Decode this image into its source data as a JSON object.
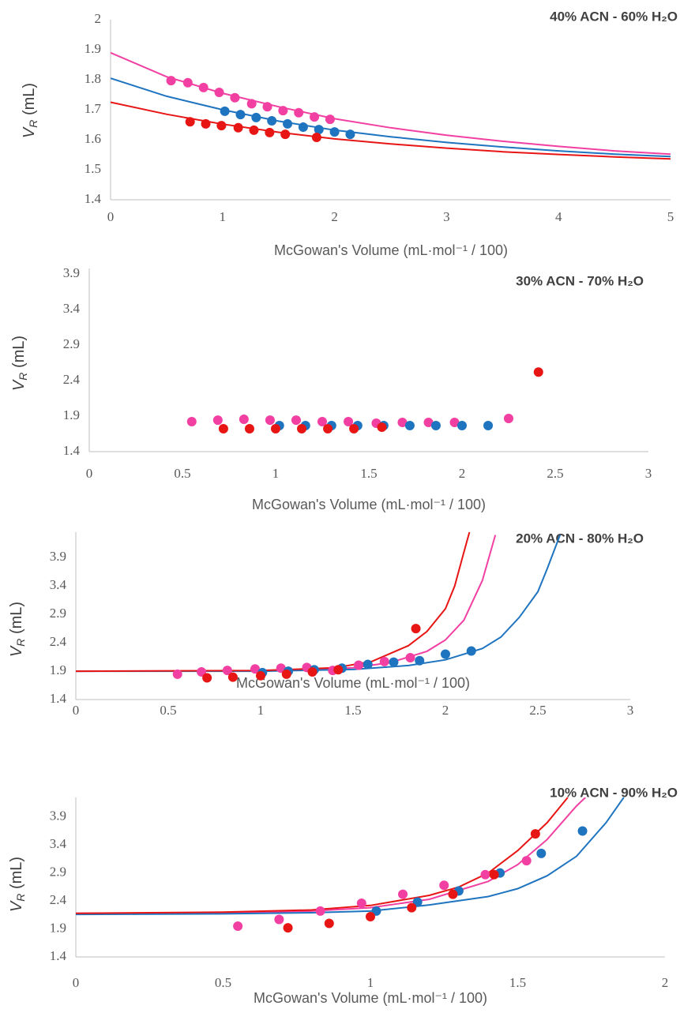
{
  "chart_data": [
    {
      "type": "scatter",
      "title": "40% ACN - 60% H₂O",
      "x_label": "McGowan's Volume (mL·mol⁻¹ / 100)",
      "y_label": [
        "V",
        "R",
        " (mL)"
      ],
      "xlim": [
        0,
        5
      ],
      "ylim": [
        1.4,
        2
      ],
      "xticks": [
        0,
        1,
        2,
        3,
        4,
        5
      ],
      "yticks": [
        1.4,
        1.5,
        1.6,
        1.7,
        1.8,
        1.9,
        2
      ],
      "series": [
        {
          "color": "#f23fa2",
          "x": [
            0.54,
            0.69,
            0.83,
            0.97,
            1.11,
            1.26,
            1.4,
            1.54,
            1.68,
            1.82,
            1.96
          ],
          "values": [
            1.797,
            1.79,
            1.774,
            1.758,
            1.74,
            1.72,
            1.71,
            1.697,
            1.69,
            1.676,
            1.668
          ],
          "fit": {
            "x": [
              0,
              0.5,
              1,
              1.5,
              2,
              2.5,
              3,
              3.5,
              4,
              4.5,
              5
            ],
            "values": [
              1.89,
              1.81,
              1.755,
              1.71,
              1.67,
              1.64,
              1.615,
              1.595,
              1.578,
              1.563,
              1.552
            ]
          }
        },
        {
          "color": "#1f74c0",
          "x": [
            1.02,
            1.16,
            1.3,
            1.44,
            1.58,
            1.72,
            1.86,
            2.0,
            2.14
          ],
          "values": [
            1.695,
            1.684,
            1.674,
            1.663,
            1.653,
            1.642,
            1.634,
            1.626,
            1.618
          ],
          "fit": {
            "x": [
              0,
              0.5,
              1,
              1.5,
              2,
              2.5,
              3,
              3.5,
              4,
              4.5,
              5
            ],
            "values": [
              1.805,
              1.745,
              1.7,
              1.662,
              1.632,
              1.61,
              1.591,
              1.576,
              1.563,
              1.552,
              1.544
            ]
          }
        },
        {
          "color": "#e81515",
          "x": [
            0.71,
            0.85,
            0.99,
            1.14,
            1.28,
            1.42,
            1.56,
            1.84
          ],
          "values": [
            1.66,
            1.653,
            1.647,
            1.64,
            1.632,
            1.624,
            1.618,
            1.608
          ],
          "fit": {
            "x": [
              0,
              0.5,
              1,
              1.5,
              2,
              2.5,
              3,
              3.5,
              4,
              4.5,
              5
            ],
            "values": [
              1.725,
              1.685,
              1.652,
              1.625,
              1.603,
              1.586,
              1.572,
              1.56,
              1.551,
              1.543,
              1.536
            ]
          }
        }
      ]
    },
    {
      "type": "scatter",
      "title": "30% ACN - 70% H₂O",
      "x_label": "McGowan's Volume (mL·mol⁻¹ / 100)",
      "y_label": [
        "V",
        "R",
        " (mL)"
      ],
      "xlim": [
        0,
        3
      ],
      "ylim": [
        1.4,
        3.98
      ],
      "xticks": [
        0,
        0.5,
        1,
        1.5,
        2,
        2.5,
        3
      ],
      "yticks": [
        1.4,
        1.9,
        2.4,
        2.9,
        3.4,
        3.9
      ],
      "series": [
        {
          "color": "#f23fa2",
          "x": [
            0.55,
            0.69,
            0.83,
            0.97,
            1.11,
            1.25,
            1.39,
            1.54,
            1.68,
            1.82,
            1.96,
            2.25
          ],
          "values": [
            1.822,
            1.844,
            1.856,
            1.844,
            1.844,
            1.822,
            1.822,
            1.8,
            1.811,
            1.811,
            1.811,
            1.867
          ]
        },
        {
          "color": "#1f74c0",
          "x": [
            1.02,
            1.16,
            1.3,
            1.44,
            1.58,
            1.72,
            1.86,
            2.0,
            2.14
          ],
          "values": [
            1.767,
            1.767,
            1.767,
            1.767,
            1.767,
            1.767,
            1.767,
            1.767,
            1.767
          ]
        },
        {
          "color": "#e81515",
          "x": [
            0.72,
            0.86,
            1.0,
            1.14,
            1.28,
            1.42,
            1.57,
            2.41
          ],
          "values": [
            1.722,
            1.722,
            1.722,
            1.722,
            1.722,
            1.722,
            1.744,
            2.52
          ]
        }
      ]
    },
    {
      "type": "scatter",
      "title": "20% ACN - 80% H₂O",
      "x_label": "McGowan's Volume (mL·mol⁻¹ / 100)",
      "y_label": [
        "V",
        "R",
        " (mL)"
      ],
      "xlim": [
        0,
        3
      ],
      "ylim": [
        1.4,
        4.35
      ],
      "xticks": [
        0,
        0.5,
        1,
        1.5,
        2,
        2.5,
        3
      ],
      "yticks": [
        1.4,
        1.9,
        2.4,
        2.9,
        3.4,
        3.9
      ],
      "series": [
        {
          "color": "#f23fa2",
          "x": [
            0.55,
            0.68,
            0.82,
            0.97,
            1.11,
            1.25,
            1.39,
            1.53,
            1.67,
            1.81
          ],
          "values": [
            1.847,
            1.887,
            1.913,
            1.94,
            1.953,
            1.966,
            1.913,
            2.005,
            2.07,
            2.137
          ],
          "fit": {
            "x": [
              0,
              1,
              1.5,
              1.7,
              1.9,
              2.0,
              2.1,
              2.2,
              2.27
            ],
            "values": [
              1.9,
              1.905,
              1.96,
              2.05,
              2.25,
              2.45,
              2.8,
              3.5,
              4.3
            ]
          }
        },
        {
          "color": "#1f74c0",
          "x": [
            1.01,
            1.15,
            1.29,
            1.44,
            1.58,
            1.72,
            1.86,
            2.0,
            2.14
          ],
          "values": [
            1.874,
            1.9,
            1.926,
            1.953,
            2.02,
            2.06,
            2.085,
            2.2,
            2.255
          ],
          "fit": {
            "x": [
              0,
              1,
              1.5,
              1.8,
              2.0,
              2.2,
              2.3,
              2.4,
              2.5,
              2.55,
              2.62
            ],
            "values": [
              1.9,
              1.9,
              1.93,
              2.0,
              2.1,
              2.3,
              2.5,
              2.85,
              3.3,
              3.7,
              4.3
            ]
          }
        },
        {
          "color": "#e81515",
          "x": [
            0.71,
            0.85,
            1.0,
            1.14,
            1.28,
            1.42,
            1.84
          ],
          "values": [
            1.782,
            1.795,
            1.82,
            1.847,
            1.887,
            1.926,
            2.65
          ],
          "fit": {
            "x": [
              0,
              1,
              1.4,
              1.6,
              1.8,
              1.9,
              2.0,
              2.05,
              2.1,
              2.13
            ],
            "values": [
              1.9,
              1.91,
              1.96,
              2.07,
              2.35,
              2.6,
              3.0,
              3.4,
              4.0,
              4.35
            ]
          }
        }
      ]
    },
    {
      "type": "scatter",
      "title": "10% ACN - 90% H₂O",
      "x_label": "McGowan's Volume (mL·mol⁻¹ / 100)",
      "y_label": [
        "V",
        "R",
        " (mL)"
      ],
      "xlim": [
        0,
        2
      ],
      "ylim": [
        1.4,
        4.25
      ],
      "xticks": [
        0,
        0.5,
        1,
        1.5,
        2
      ],
      "yticks": [
        1.4,
        1.9,
        2.4,
        2.9,
        3.4,
        3.9
      ],
      "series": [
        {
          "color": "#f23fa2",
          "x": [
            0.55,
            0.69,
            0.83,
            0.97,
            1.11,
            1.25,
            1.39,
            1.53
          ],
          "values": [
            1.95,
            2.07,
            2.22,
            2.36,
            2.52,
            2.68,
            2.87,
            3.12
          ],
          "fit": {
            "x": [
              0,
              0.5,
              0.8,
              1.0,
              1.2,
              1.4,
              1.5,
              1.6,
              1.7,
              1.73
            ],
            "values": [
              2.18,
              2.19,
              2.22,
              2.28,
              2.43,
              2.75,
              3.05,
              3.5,
              4.1,
              4.25
            ]
          }
        },
        {
          "color": "#1f74c0",
          "x": [
            1.02,
            1.16,
            1.3,
            1.44,
            1.58,
            1.72
          ],
          "values": [
            2.22,
            2.38,
            2.58,
            2.9,
            3.25,
            3.65
          ],
          "fit": {
            "x": [
              0,
              0.5,
              0.8,
              1.0,
              1.2,
              1.4,
              1.5,
              1.6,
              1.7,
              1.8,
              1.86
            ],
            "values": [
              2.16,
              2.17,
              2.19,
              2.22,
              2.33,
              2.48,
              2.62,
              2.85,
              3.2,
              3.8,
              4.25
            ]
          }
        },
        {
          "color": "#e81515",
          "x": [
            0.72,
            0.86,
            1.0,
            1.14,
            1.28,
            1.42,
            1.56
          ],
          "values": [
            1.92,
            2.0,
            2.12,
            2.28,
            2.52,
            2.87,
            3.6
          ],
          "fit": {
            "x": [
              0,
              0.5,
              0.8,
              1.0,
              1.2,
              1.3,
              1.4,
              1.5,
              1.6,
              1.67
            ],
            "values": [
              2.18,
              2.2,
              2.24,
              2.32,
              2.5,
              2.65,
              2.9,
              3.3,
              3.8,
              4.25
            ]
          }
        }
      ]
    }
  ]
}
